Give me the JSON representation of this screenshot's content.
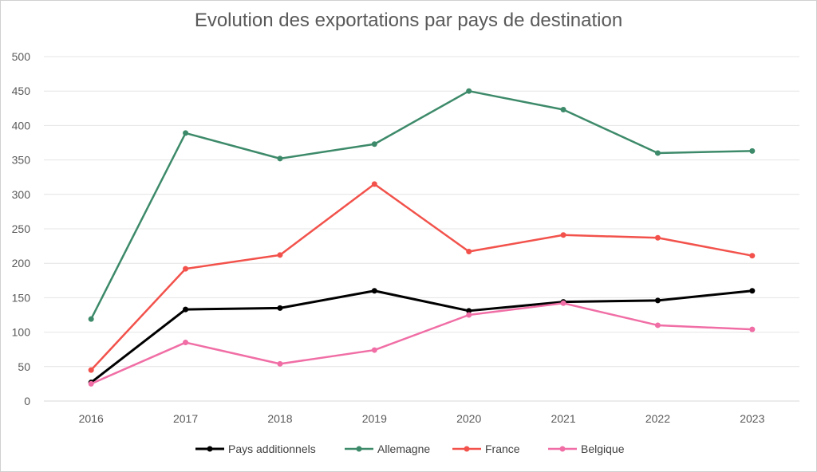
{
  "chart_data": {
    "type": "line",
    "title": "Evolution des exportations par pays de destination",
    "xlabel": "",
    "ylabel": "",
    "categories": [
      "2016",
      "2017",
      "2018",
      "2019",
      "2020",
      "2021",
      "2022",
      "2023"
    ],
    "ylim": [
      0,
      500
    ],
    "yticks": [
      0,
      50,
      100,
      150,
      200,
      250,
      300,
      350,
      400,
      450,
      500
    ],
    "grid": true,
    "legend_position": "bottom",
    "series": [
      {
        "name": "Pays additionnels",
        "color": "#000000",
        "values": [
          27,
          133,
          135,
          160,
          131,
          144,
          146,
          160
        ]
      },
      {
        "name": "Allemagne",
        "color": "#3d8a6a",
        "values": [
          119,
          389,
          352,
          373,
          450,
          423,
          360,
          363
        ]
      },
      {
        "name": "France",
        "color": "#f2524b",
        "values": [
          45,
          192,
          212,
          315,
          217,
          241,
          237,
          211
        ]
      },
      {
        "name": "Belgique",
        "color": "#f06ea5",
        "values": [
          25,
          85,
          54,
          74,
          125,
          142,
          110,
          104
        ]
      }
    ]
  }
}
